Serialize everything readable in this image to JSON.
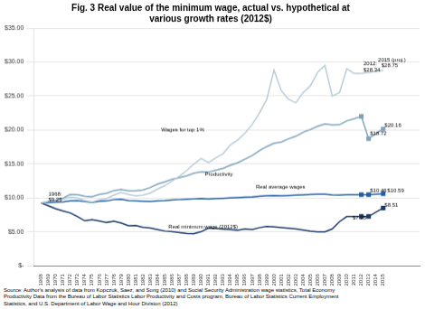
{
  "chart_data": {
    "type": "line",
    "title": "Fig. 3 Real value of the minimum wage, actual vs. hypothetical at\nvarious growth rates (2012$)",
    "xlim": [
      1967,
      2020
    ],
    "xticks": [
      1968,
      1969,
      1970,
      1971,
      1972,
      1973,
      1974,
      1975,
      1976,
      1977,
      1978,
      1979,
      1980,
      1981,
      1982,
      1983,
      1984,
      1985,
      1986,
      1987,
      1988,
      1989,
      1990,
      1991,
      1992,
      1993,
      1994,
      1995,
      1996,
      1997,
      1998,
      1999,
      2000,
      2001,
      2002,
      2003,
      2004,
      2005,
      2006,
      2007,
      2008,
      2009,
      2010,
      2011,
      2012,
      2013,
      2014,
      2015
    ],
    "ylim": [
      0,
      35
    ],
    "yticks": [
      {
        "value": 0,
        "label": "$-"
      },
      {
        "value": 5,
        "label": "$5.00"
      },
      {
        "value": 10,
        "label": "$10.00"
      },
      {
        "value": 15,
        "label": "$15.00"
      },
      {
        "value": 20,
        "label": "$20.00"
      },
      {
        "value": 25,
        "label": "$25.00"
      },
      {
        "value": 30,
        "label": "$30.00"
      },
      {
        "value": 35,
        "label": "$35.00"
      }
    ],
    "grid": "y",
    "series": [
      {
        "color": "#b8ccd8",
        "x": [
          1968,
          1969,
          1970,
          1971,
          1972,
          1973,
          1974,
          1975,
          1976,
          1977,
          1978,
          1979,
          1980,
          1981,
          1982,
          1983,
          1984,
          1985,
          1986,
          1987,
          1988,
          1989,
          1990,
          1991,
          1992,
          1993,
          1994,
          1995,
          1996,
          1997,
          1998,
          1999,
          2000,
          2001,
          2002,
          2003,
          2004,
          2005,
          2006,
          2007,
          2008,
          2009,
          2010,
          2011,
          2012
        ],
        "values": [
          9.25,
          9.5,
          9.6,
          9.8,
          10.1,
          10.0,
          9.6,
          9.4,
          9.7,
          9.9,
          10.4,
          10.8,
          10.5,
          10.3,
          10.4,
          10.7,
          11.3,
          11.8,
          12.5,
          13.2,
          14.0,
          15.0,
          15.8,
          15.2,
          15.9,
          16.5,
          17.8,
          18.5,
          19.5,
          20.8,
          22.5,
          24.5,
          28.8,
          25.8,
          24.5,
          24.0,
          25.5,
          26.5,
          28.5,
          29.5,
          25.0,
          25.5,
          29.0,
          28.34,
          28.34
        ]
      },
      {
        "color": "#b8ccd8",
        "x": [
          2012,
          2015
        ],
        "values": [
          28.34,
          28.75
        ]
      },
      {
        "color": "#7ba3bc",
        "x": [
          1968,
          1969,
          1970,
          1971,
          1972,
          1973,
          1974,
          1975,
          1976,
          1977,
          1978,
          1979,
          1980,
          1981,
          1982,
          1983,
          1984,
          1985,
          1986,
          1987,
          1988,
          1989,
          1990,
          1991,
          1992,
          1993,
          1994,
          1995,
          1996,
          1997,
          1998,
          1999,
          2000,
          2001,
          2002,
          2003,
          2004,
          2005,
          2006,
          2007,
          2008,
          2009,
          2010,
          2011,
          2012
        ],
        "values": [
          9.25,
          9.47,
          9.68,
          9.96,
          10.49,
          10.47,
          10.24,
          10.18,
          10.5,
          10.67,
          11.08,
          11.23,
          11.03,
          11.05,
          11.17,
          11.52,
          12.04,
          12.36,
          12.75,
          12.98,
          13.25,
          13.64,
          13.83,
          13.79,
          14.07,
          14.34,
          14.81,
          15.18,
          15.69,
          16.22,
          16.96,
          17.55,
          18.04,
          18.22,
          18.69,
          19.07,
          19.66,
          20.06,
          20.55,
          20.88,
          20.76,
          20.77,
          21.33,
          21.65,
          22.0
        ]
      },
      {
        "color": "#7ba3bc",
        "marker": "square",
        "x": [
          2012,
          2013,
          2015
        ],
        "values": [
          22.0,
          18.72,
          20.16
        ]
      },
      {
        "color": "#1f5fa6",
        "x": [
          1968,
          1969,
          1970,
          1971,
          1972,
          1973,
          1974,
          1975,
          1976,
          1977,
          1978,
          1979,
          1980,
          1981,
          1982,
          1983,
          1984,
          1985,
          1986,
          1987,
          1988,
          1989,
          1990,
          1991,
          1992,
          1993,
          1994,
          1995,
          1996,
          1997,
          1998,
          1999,
          2000,
          2001,
          2002,
          2003,
          2004,
          2005,
          2006,
          2007,
          2008,
          2009,
          2010,
          2011,
          2012
        ],
        "values": [
          9.25,
          9.3,
          9.35,
          9.4,
          9.55,
          9.6,
          9.45,
          9.35,
          9.5,
          9.55,
          9.75,
          9.8,
          9.6,
          9.55,
          9.5,
          9.45,
          9.55,
          9.6,
          9.7,
          9.75,
          9.8,
          9.85,
          9.9,
          9.85,
          9.9,
          9.95,
          10.0,
          10.05,
          10.1,
          10.15,
          10.25,
          10.3,
          10.35,
          10.3,
          10.35,
          10.4,
          10.45,
          10.5,
          10.55,
          10.55,
          10.45,
          10.4,
          10.46,
          10.46,
          10.46
        ]
      },
      {
        "color": "#1f5fa6",
        "marker": "square",
        "x": [
          2012,
          2013,
          2015
        ],
        "values": [
          10.46,
          10.46,
          10.59
        ]
      },
      {
        "color": "#1a3a6b",
        "x": [
          1968,
          1969,
          1970,
          1971,
          1972,
          1973,
          1974,
          1975,
          1976,
          1977,
          1978,
          1979,
          1980,
          1981,
          1982,
          1983,
          1984,
          1985,
          1986,
          1987,
          1988,
          1989,
          1990,
          1991,
          1992,
          1993,
          1994,
          1995,
          1996,
          1997,
          1998,
          1999,
          2000,
          2001,
          2002,
          2003,
          2004,
          2005,
          2006,
          2007,
          2008,
          2009,
          2010,
          2011,
          2012
        ],
        "values": [
          9.25,
          8.84,
          8.39,
          8.07,
          7.78,
          7.25,
          6.62,
          6.79,
          6.59,
          6.38,
          6.55,
          6.29,
          5.9,
          5.94,
          5.66,
          5.55,
          5.32,
          5.11,
          5.02,
          4.88,
          4.75,
          4.74,
          5.02,
          5.56,
          5.5,
          5.41,
          5.34,
          5.24,
          5.44,
          5.34,
          5.61,
          5.8,
          5.72,
          5.63,
          5.53,
          5.44,
          5.26,
          5.08,
          4.98,
          5.0,
          5.42,
          6.5,
          7.25,
          7.25,
          7.25
        ]
      },
      {
        "color": "#1a3a6b",
        "marker": "square",
        "x": [
          2012,
          2013,
          2015
        ],
        "values": [
          7.25,
          7.25,
          8.51
        ]
      }
    ],
    "annotations": [
      {
        "x": 1969.0,
        "y": 10.3,
        "text": "1968:"
      },
      {
        "x": 1969.0,
        "y": 9.55,
        "text": "$9.25"
      },
      {
        "x": 1984.5,
        "y": 19.8,
        "text": "Wages for top 1%"
      },
      {
        "x": 1990.5,
        "y": 13.3,
        "text": "Productivity"
      },
      {
        "x": 1997.5,
        "y": 11.4,
        "text": "Real average wages"
      },
      {
        "x": 1985.5,
        "y": 5.55,
        "text": "Real minimum wage (2012$)"
      },
      {
        "x": 2012.3,
        "y": 29.5,
        "text": "2012:"
      },
      {
        "x": 2012.3,
        "y": 28.6,
        "text": "$28.34"
      },
      {
        "x": 2013.8,
        "y": 30.1,
        "text": "2015 (proj.)"
      },
      {
        "x": 2014.0,
        "y": 29.2,
        "text": "$28.75"
      },
      {
        "x": 2013.2,
        "y": 19.3,
        "text": "$18.72"
      },
      {
        "x": 2015.2,
        "y": 20.4,
        "text": "$20.16"
      },
      {
        "x": 2013.2,
        "y": 10.85,
        "text": "$10.46"
      },
      {
        "x": 2015.2,
        "y": 10.85,
        "text": "$10.59"
      },
      {
        "x": 2010.8,
        "y": 6.85,
        "text": "$7.25"
      },
      {
        "x": 2015.2,
        "y": 8.75,
        "text": "$8.51"
      }
    ],
    "source": "Source: Author's analysis of data from Kopczuk, Saez, and Song (2010) and Social Security Administration wage statistics, Total Economy\nProductivity Data from the Bureau of Labor Statistics Labor Productivity and Costs program, Bureau of Labor Statistics Current Employment\nStatistics, and U.S. Department of Labor Wage and Hour Division (2012)"
  }
}
